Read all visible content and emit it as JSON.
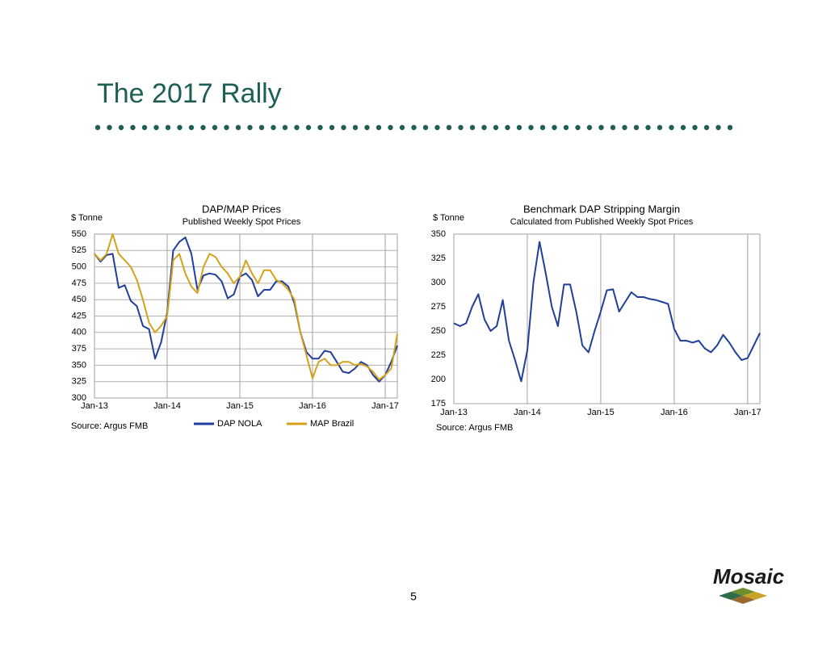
{
  "page": {
    "title": "The 2017 Rally",
    "page_number": "5",
    "logo": "Mosaic"
  },
  "chart_data": [
    {
      "type": "line",
      "title": "DAP/MAP Prices",
      "subtitle": "Published Weekly Spot Prices",
      "y_label": "$ Tonne",
      "source": "Source: Argus FMB",
      "categories": [
        "Jan-13",
        null,
        null,
        null,
        null,
        null,
        null,
        null,
        null,
        null,
        null,
        null,
        "Jan-14",
        null,
        null,
        null,
        null,
        null,
        null,
        null,
        null,
        null,
        null,
        null,
        "Jan-15",
        null,
        null,
        null,
        null,
        null,
        null,
        null,
        null,
        null,
        null,
        null,
        "Jan-16",
        null,
        null,
        null,
        null,
        null,
        null,
        null,
        null,
        null,
        null,
        null,
        "Jan-17",
        null,
        null
      ],
      "series": [
        {
          "name": "DAP NOLA",
          "color": "#1f3f9a",
          "values": [
            520,
            508,
            518,
            520,
            468,
            472,
            448,
            440,
            410,
            405,
            360,
            385,
            430,
            525,
            538,
            545,
            520,
            465,
            487,
            490,
            488,
            478,
            452,
            458,
            485,
            490,
            480,
            455,
            465,
            465,
            478,
            478,
            470,
            445,
            400,
            370,
            360,
            360,
            372,
            370,
            355,
            340,
            338,
            345,
            355,
            350,
            335,
            325,
            335,
            355,
            380
          ]
        },
        {
          "name": "MAP Brazil",
          "color": "#d4a21a",
          "values": [
            520,
            510,
            520,
            550,
            520,
            510,
            500,
            480,
            450,
            415,
            400,
            410,
            425,
            510,
            520,
            490,
            470,
            460,
            500,
            520,
            515,
            500,
            490,
            475,
            485,
            510,
            490,
            475,
            495,
            495,
            480,
            475,
            465,
            450,
            400,
            365,
            330,
            355,
            360,
            350,
            350,
            355,
            355,
            350,
            352,
            348,
            340,
            328,
            335,
            345,
            398
          ]
        }
      ],
      "ylim": [
        300,
        550
      ],
      "yticks": [
        300,
        325,
        350,
        375,
        400,
        425,
        450,
        475,
        500,
        525,
        550
      ],
      "xgrid": true,
      "ygrid": true,
      "legend": "bottom"
    },
    {
      "type": "line",
      "title": "Benchmark DAP Stripping Margin",
      "subtitle": "Calculated from Published Weekly Spot Prices",
      "y_label": "$ Tonne",
      "source": "Source: Argus FMB",
      "categories": [
        "Jan-13",
        null,
        null,
        null,
        null,
        null,
        null,
        null,
        null,
        null,
        null,
        null,
        "Jan-14",
        null,
        null,
        null,
        null,
        null,
        null,
        null,
        null,
        null,
        null,
        null,
        "Jan-15",
        null,
        null,
        null,
        null,
        null,
        null,
        null,
        null,
        null,
        null,
        null,
        "Jan-16",
        null,
        null,
        null,
        null,
        null,
        null,
        null,
        null,
        null,
        null,
        null,
        "Jan-17",
        null,
        null
      ],
      "series": [
        {
          "color": "#1f3f9a",
          "values": [
            258,
            255,
            258,
            275,
            288,
            262,
            250,
            255,
            282,
            240,
            220,
            198,
            230,
            300,
            342,
            310,
            275,
            255,
            298,
            298,
            270,
            235,
            228,
            250,
            270,
            292,
            293,
            270,
            280,
            290,
            285,
            285,
            283,
            282,
            280,
            278,
            252,
            240,
            240,
            238,
            240,
            232,
            228,
            235,
            246,
            238,
            228,
            220,
            222,
            235,
            248
          ]
        }
      ],
      "ylim": [
        175,
        350
      ],
      "yticks": [
        175,
        200,
        225,
        250,
        275,
        300,
        325,
        350
      ],
      "xgrid": true,
      "ygrid": false
    }
  ]
}
